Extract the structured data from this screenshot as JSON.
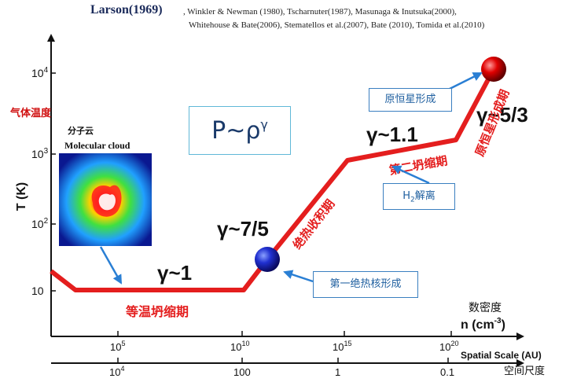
{
  "header": {
    "title": "Larson(1969)",
    "refs_line1": ", Winkler & Newman (1980), Tscharnuter(1987), Masunaga & Inutsuka(2000),",
    "refs_line2": "Whitehouse & Bate(2006),  Stematellos et al.(2007), Bate (2010), Tomida et al.(2010)"
  },
  "axes": {
    "y_label_cn": "气体温度",
    "y_label": "T (K)",
    "y_ticks": [
      {
        "base": "10",
        "exp": ""
      },
      {
        "base": "10",
        "exp": "2"
      },
      {
        "base": "10",
        "exp": "3"
      },
      {
        "base": "10",
        "exp": "4"
      }
    ],
    "x_ticks": [
      {
        "base": "10",
        "exp": "5"
      },
      {
        "base": "10",
        "exp": "10"
      },
      {
        "base": "10",
        "exp": "15"
      },
      {
        "base": "10",
        "exp": "20"
      }
    ],
    "x_label_cn": "数密度",
    "x_label": "n (cm",
    "x_label_exp": "-3",
    "x_label_end": ")",
    "scale_ticks": [
      {
        "base": "10",
        "exp": "4"
      },
      {
        "base": "100",
        "exp": ""
      },
      {
        "base": "1",
        "exp": ""
      },
      {
        "base": "0.1",
        "exp": ""
      }
    ],
    "scale_label": "Spatial Scale (AU)",
    "scale_label_cn": "空间尺度"
  },
  "formula": {
    "text": "P~ρ",
    "exp": "γ"
  },
  "cloud": {
    "label_cn": "分子云",
    "label": "Molecular cloud"
  },
  "gammas": [
    "γ~1",
    "γ~7/5",
    "γ~1.1",
    "γ~5/3"
  ],
  "phases": [
    "等温坍缩期",
    "绝热收积期",
    "第二坍缩期",
    "原恒星形成期"
  ],
  "boxes": {
    "first_core": "第一绝热核形成",
    "h2": {
      "text": "H",
      "sub": "2",
      "rest": "解离"
    },
    "protostar": "原恒星形成"
  },
  "colors": {
    "curve": "#e41e1e",
    "arrow": "#2a7fd4",
    "box": "#3a7fc0",
    "axis_label": "#d01010"
  }
}
